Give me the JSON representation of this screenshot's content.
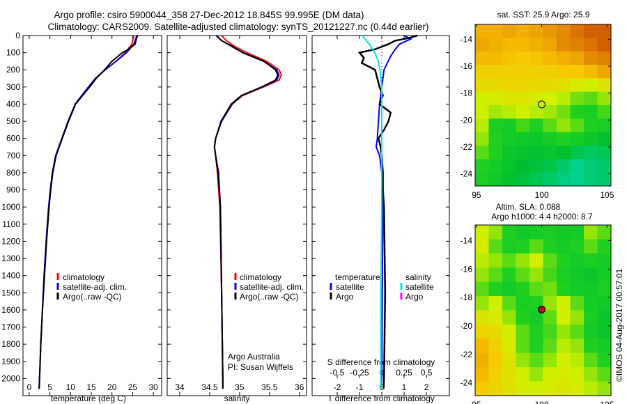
{
  "title_line1": "Argo profile: csiro 5900044_358 27-Dec-2012 18.845S 99.995E (DM data)",
  "title_line2": "Climatology: CARS2009. Satellite-adjusted climatology: synTS_20121227.nc (0.44d earlier)",
  "credit": "©IMOS 04-Aug-2017 00:57:01",
  "colors": {
    "climatology": "#ff0000",
    "satellite": "#0000ff",
    "argo": "#000000",
    "sal_satellite": "#00e5ee",
    "sal_argo": "#ff00ff"
  },
  "chart_data": [
    {
      "type": "line",
      "name": "temperature",
      "xlabel": "temperature (deg C)",
      "xlim": [
        -1.5,
        32
      ],
      "ylim": [
        0,
        2100
      ],
      "xticks": [
        0,
        5,
        10,
        15,
        20,
        25,
        30
      ],
      "yticks": [
        0,
        100,
        200,
        300,
        400,
        500,
        600,
        700,
        800,
        900,
        1000,
        1100,
        1200,
        1300,
        1400,
        1500,
        1600,
        1700,
        1800,
        1900,
        2000
      ],
      "legend": [
        "climatology",
        "satellite-adj. clim.",
        "Argo(..raw -QC)"
      ],
      "series": [
        {
          "name": "climatology",
          "color": "#ff0000",
          "depth": [
            0,
            50,
            100,
            150,
            200,
            250,
            300,
            350,
            400,
            500,
            600,
            700,
            800,
            900,
            1000,
            1200,
            1400,
            1600,
            1800,
            2000,
            2060
          ],
          "values": [
            25.3,
            24.8,
            23.2,
            21,
            18.4,
            16,
            14.4,
            12.8,
            11.2,
            9.4,
            7.9,
            6.4,
            5.6,
            5.1,
            4.7,
            4.1,
            3.6,
            3.2,
            2.8,
            2.5,
            2.4
          ]
        },
        {
          "name": "satellite-adj. clim.",
          "color": "#0000ff",
          "depth": [
            0,
            50,
            100,
            150,
            200,
            250,
            300,
            350,
            400,
            500,
            600,
            700,
            800,
            900,
            1000,
            1200,
            1400,
            1600,
            1800,
            2000,
            2060
          ],
          "values": [
            26,
            25.3,
            23.5,
            21,
            18.3,
            16,
            14.3,
            12.7,
            11.1,
            9.4,
            7.9,
            6.4,
            5.6,
            5.1,
            4.7,
            4.1,
            3.6,
            3.2,
            2.8,
            2.5,
            2.4
          ]
        },
        {
          "name": "Argo(..raw -QC)",
          "color": "#000000",
          "depth": [
            0,
            20,
            50,
            80,
            100,
            150,
            200,
            250,
            300,
            350,
            400,
            500,
            600,
            700,
            800,
            900,
            1000,
            1200,
            1400,
            1600,
            1800,
            2000,
            2060
          ],
          "values": [
            26.2,
            25.9,
            25.6,
            24,
            22.5,
            20,
            18.2,
            16.2,
            14.6,
            12.9,
            11.2,
            9.5,
            8,
            6.5,
            5.7,
            5.2,
            4.8,
            4.2,
            3.7,
            3.2,
            2.8,
            2.5,
            2.4
          ]
        }
      ]
    },
    {
      "type": "line",
      "name": "salinity",
      "xlabel": "salinity",
      "xlim": [
        33.79,
        36.12
      ],
      "ylim": [
        0,
        2100
      ],
      "xticks": [
        34,
        34.5,
        35,
        35.5,
        36
      ],
      "legend": [
        "climatology",
        "satellite-adj. clim.",
        "Argo(..raw -QC)"
      ],
      "annotations": [
        "Argo Australia",
        "PI: Susan Wijffels"
      ],
      "series": [
        {
          "name": "climatology",
          "color": "#ff0000",
          "depth": [
            0,
            30,
            60,
            100,
            150,
            200,
            230,
            260,
            300,
            350,
            400,
            500,
            600,
            650,
            700,
            800,
            1000,
            1500,
            2000,
            2060
          ],
          "values": [
            34.7,
            34.78,
            34.9,
            35.12,
            35.45,
            35.66,
            35.7,
            35.66,
            35.4,
            35.05,
            34.88,
            34.7,
            34.6,
            34.58,
            34.6,
            34.63,
            34.67,
            34.7,
            34.72,
            34.72
          ]
        },
        {
          "name": "satellite-adj. clim.",
          "color": "#0000ff",
          "depth": [
            0,
            30,
            60,
            100,
            150,
            200,
            230,
            260,
            300,
            350,
            400,
            500,
            600,
            650,
            700,
            800,
            1000,
            1500,
            2000,
            2060
          ],
          "values": [
            34.62,
            34.7,
            34.85,
            35.05,
            35.4,
            35.62,
            35.66,
            35.62,
            35.38,
            35.04,
            34.87,
            34.7,
            34.6,
            34.58,
            34.6,
            34.65,
            34.68,
            34.7,
            34.72,
            34.72
          ]
        },
        {
          "name": "Argo(..raw -QC)",
          "color": "#000000",
          "depth": [
            0,
            30,
            60,
            100,
            150,
            200,
            230,
            260,
            300,
            350,
            400,
            500,
            600,
            650,
            700,
            800,
            1000,
            1500,
            2000,
            2060
          ],
          "values": [
            34.61,
            34.7,
            34.86,
            35.06,
            35.41,
            35.6,
            35.64,
            35.6,
            35.37,
            35.03,
            34.86,
            34.69,
            34.6,
            34.58,
            34.6,
            34.64,
            34.68,
            34.7,
            34.72,
            34.72
          ]
        }
      ]
    },
    {
      "type": "line",
      "name": "difference",
      "xlabel": "T difference from climatology",
      "xlabel2": "S difference from climatology",
      "xlim": [
        -3.125,
        3.03
      ],
      "ylim": [
        0,
        2100
      ],
      "xticks": [
        -2,
        -1,
        0,
        1,
        2
      ],
      "s_xticks": [
        "-0.5",
        "-0.25",
        "0",
        "0.25",
        "0.5"
      ],
      "s_xtick_values": [
        -0.5,
        -0.25,
        0,
        0.25,
        0.5
      ],
      "legend": {
        "temperature_header": "temperature",
        "salinity_header": "salinity",
        "items": [
          "satellite",
          "Argo",
          "satellite",
          "Argo"
        ]
      },
      "series": [
        {
          "name": "temperature satellite",
          "color": "#0000ff",
          "units": "T",
          "depth": [
            0,
            20,
            50,
            80,
            120,
            200,
            300,
            400,
            500,
            600,
            650,
            700,
            800,
            1000,
            1500,
            2000,
            2060
          ],
          "values": [
            1,
            1.3,
            0.8,
            0.6,
            0.4,
            0.1,
            0,
            -0.1,
            -0.15,
            -0.2,
            -0.25,
            -0.1,
            0,
            0.05,
            0.02,
            0,
            -0.05
          ]
        },
        {
          "name": "temperature Argo",
          "color": "#000000",
          "units": "T",
          "depth": [
            0,
            15,
            30,
            50,
            80,
            100,
            130,
            160,
            200,
            250,
            300,
            350,
            400,
            450,
            500,
            550,
            600,
            650,
            700,
            800,
            900,
            1000,
            1200,
            1500,
            1800,
            2000,
            2060
          ],
          "values": [
            1.6,
            1.2,
            0.6,
            0.3,
            -0.3,
            -1,
            -0.8,
            -0.9,
            -0.3,
            -0.2,
            -0.1,
            0.05,
            -0.1,
            0.4,
            0.3,
            0.1,
            -0.15,
            -0.05,
            0,
            0.05,
            0.05,
            0.1,
            0.12,
            0.15,
            0.12,
            0.1,
            0.08
          ]
        },
        {
          "name": "salinity satellite",
          "color": "#00e5ee",
          "units": "S",
          "depth": [
            0,
            50,
            100,
            150,
            200,
            300,
            400,
            600,
            800,
            1000,
            1500,
            2000,
            2060
          ],
          "values": [
            -0.22,
            -0.14,
            -0.08,
            -0.04,
            -0.02,
            0,
            0,
            0,
            0,
            0,
            -0.01,
            -0.01,
            -0.01
          ]
        }
      ]
    },
    {
      "type": "heatmap",
      "name": "sst-map",
      "title": "sat. SST: 25.9 Argo: 25.9",
      "xlim": [
        94.9,
        105.3
      ],
      "ylim": [
        -24.9,
        -12.9
      ],
      "xticks": [
        95,
        100,
        105
      ],
      "yticks": [
        -14,
        -16,
        -18,
        -20,
        -22,
        -24
      ],
      "marker": {
        "lon": 99.995,
        "lat": -18.845,
        "fill": "none"
      },
      "grid": [
        [
          0.8,
          0.8,
          0.82,
          0.8,
          0.82,
          0.85,
          0.88,
          0.92,
          0.95,
          0.95
        ],
        [
          0.82,
          0.8,
          0.78,
          0.78,
          0.8,
          0.82,
          0.88,
          0.9,
          0.92,
          0.95
        ],
        [
          0.78,
          0.78,
          0.76,
          0.75,
          0.76,
          0.78,
          0.8,
          0.82,
          0.88,
          0.9
        ],
        [
          0.72,
          0.72,
          0.72,
          0.72,
          0.72,
          0.72,
          0.74,
          0.75,
          0.78,
          0.82
        ],
        [
          0.68,
          0.68,
          0.7,
          0.7,
          0.68,
          0.68,
          0.66,
          0.62,
          0.6,
          0.65
        ],
        [
          0.6,
          0.62,
          0.64,
          0.64,
          0.62,
          0.6,
          0.58,
          0.52,
          0.5,
          0.55
        ],
        [
          0.6,
          0.56,
          0.58,
          0.6,
          0.58,
          0.56,
          0.52,
          0.45,
          0.42,
          0.48
        ],
        [
          0.58,
          0.42,
          0.4,
          0.48,
          0.44,
          0.5,
          0.55,
          0.5,
          0.45,
          0.42
        ],
        [
          0.55,
          0.45,
          0.4,
          0.38,
          0.36,
          0.4,
          0.45,
          0.4,
          0.35,
          0.32
        ],
        [
          0.5,
          0.45,
          0.36,
          0.34,
          0.32,
          0.34,
          0.3,
          0.25,
          0.22,
          0.24
        ],
        [
          0.45,
          0.4,
          0.34,
          0.3,
          0.28,
          0.26,
          0.2,
          0.15,
          0.18,
          0.2
        ],
        [
          0.42,
          0.38,
          0.32,
          0.28,
          0.24,
          0.2,
          0.16,
          0.14,
          0.18,
          0.2
        ]
      ]
    },
    {
      "type": "heatmap",
      "name": "sla-map",
      "title": "Altim. SLA: 0.088",
      "subtitle": "Argo h1000: 4.4 h2000: 8.7",
      "xlim": [
        94.9,
        105.3
      ],
      "ylim": [
        -24.9,
        -12.9
      ],
      "xticks": [
        95,
        100,
        105
      ],
      "yticks": [
        -14,
        -16,
        -18,
        -20,
        -22,
        -24
      ],
      "marker": {
        "lon": 99.995,
        "lat": -18.845,
        "fill": "#c00020"
      },
      "grid": [
        [
          0.6,
          0.55,
          0.45,
          0.38,
          0.4,
          0.42,
          0.38,
          0.4,
          0.55,
          0.5
        ],
        [
          0.62,
          0.5,
          0.42,
          0.45,
          0.5,
          0.45,
          0.4,
          0.45,
          0.5,
          0.45
        ],
        [
          0.58,
          0.55,
          0.5,
          0.55,
          0.6,
          0.5,
          0.45,
          0.4,
          0.42,
          0.4
        ],
        [
          0.55,
          0.5,
          0.45,
          0.5,
          0.55,
          0.48,
          0.42,
          0.38,
          0.35,
          0.4
        ],
        [
          0.5,
          0.45,
          0.4,
          0.45,
          0.5,
          0.52,
          0.45,
          0.4,
          0.38,
          0.42
        ],
        [
          0.55,
          0.6,
          0.5,
          0.42,
          0.45,
          0.55,
          0.6,
          0.5,
          0.4,
          0.38
        ],
        [
          0.65,
          0.62,
          0.55,
          0.45,
          0.4,
          0.5,
          0.6,
          0.55,
          0.42,
          0.35
        ],
        [
          0.7,
          0.68,
          0.6,
          0.5,
          0.45,
          0.48,
          0.55,
          0.5,
          0.4,
          0.35
        ],
        [
          0.78,
          0.72,
          0.62,
          0.5,
          0.45,
          0.5,
          0.58,
          0.55,
          0.45,
          0.4
        ],
        [
          0.8,
          0.75,
          0.65,
          0.55,
          0.5,
          0.55,
          0.6,
          0.58,
          0.5,
          0.45
        ],
        [
          0.78,
          0.72,
          0.66,
          0.6,
          0.55,
          0.6,
          0.62,
          0.6,
          0.55,
          0.5
        ],
        [
          0.74,
          0.7,
          0.66,
          0.62,
          0.6,
          0.62,
          0.64,
          0.62,
          0.58,
          0.55
        ]
      ]
    }
  ]
}
